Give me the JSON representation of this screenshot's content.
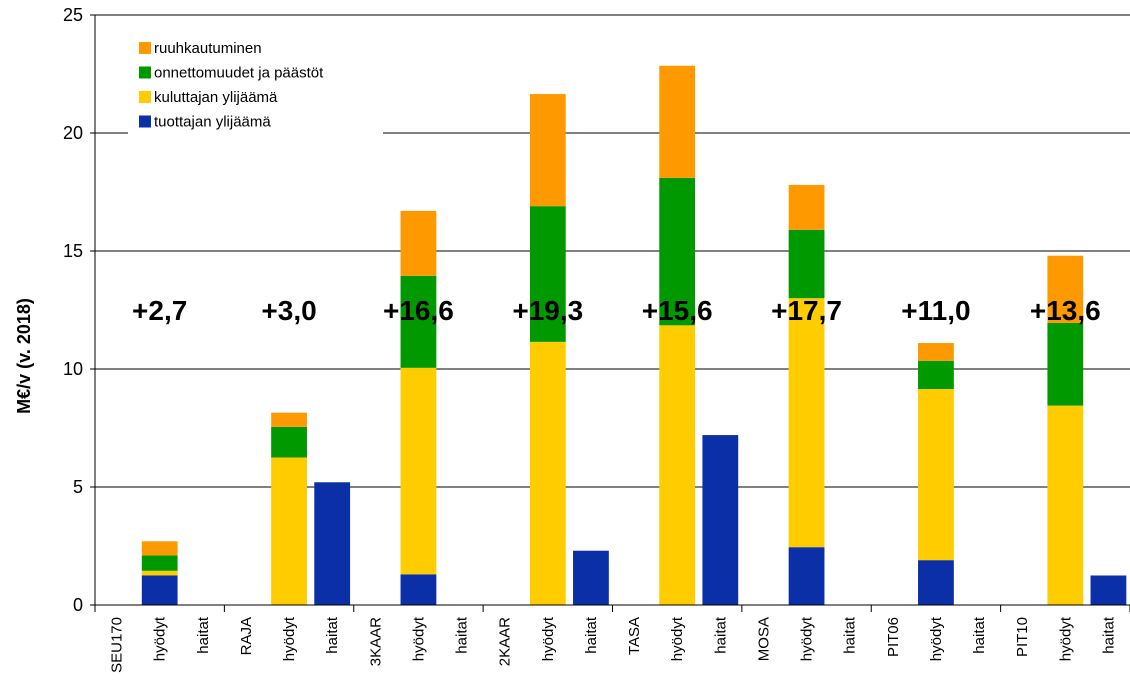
{
  "chart_data": {
    "type": "bar",
    "stacked": true,
    "ylabel": "M€/v (v. 2018)",
    "ylim": [
      0,
      25
    ],
    "yticks": [
      0,
      5,
      10,
      15,
      20,
      25
    ],
    "grid": true,
    "legend_position": "top-left",
    "categories": [
      "SEU170",
      "hyödyt",
      "haitat",
      "RAJA",
      "hyödyt",
      "haitat",
      "3KAAR",
      "hyödyt",
      "haitat",
      "2KAAR",
      "hyödyt",
      "haitat",
      "TASA",
      "hyödyt",
      "haitat",
      "MOSA",
      "hyödyt",
      "haitat",
      "PIT06",
      "hyödyt",
      "haitat",
      "PIT10",
      "hyödyt",
      "haitat"
    ],
    "series": [
      {
        "name": "tuottajan ylijäämä",
        "color": "#0a2fa6",
        "values": [
          0,
          1.25,
          0,
          0,
          0,
          5.2,
          0,
          1.3,
          0,
          0,
          0,
          2.3,
          0,
          0,
          7.2,
          0,
          2.45,
          0,
          0,
          1.9,
          0,
          0,
          0,
          1.25
        ]
      },
      {
        "name": "kuluttajan ylijäämä",
        "color": "#ffcc00",
        "values": [
          0,
          0.2,
          0,
          0,
          6.25,
          0,
          0,
          8.75,
          0,
          0,
          11.15,
          0,
          0,
          11.85,
          0,
          0,
          10.55,
          0,
          0,
          7.25,
          0,
          0,
          8.45,
          0
        ]
      },
      {
        "name": "onnettomuudet ja päästöt",
        "color": "#009900",
        "values": [
          0,
          0.65,
          0,
          0,
          1.3,
          0,
          0,
          3.9,
          0,
          0,
          5.75,
          0,
          0,
          6.25,
          0,
          0,
          2.9,
          0,
          0,
          1.2,
          0,
          0,
          3.5,
          0
        ]
      },
      {
        "name": "ruuhkautuminen",
        "color": "#ff9900",
        "values": [
          0,
          0.6,
          0,
          0,
          0.6,
          0,
          0,
          2.75,
          0,
          0,
          4.75,
          0,
          0,
          4.75,
          0,
          0,
          1.9,
          0,
          0,
          0.75,
          0,
          0,
          2.85,
          0
        ]
      }
    ],
    "annotations": [
      {
        "text": "+2,7",
        "group": 0
      },
      {
        "text": "+3,0",
        "group": 1
      },
      {
        "text": "+16,6",
        "group": 2
      },
      {
        "text": "+19,3",
        "group": 3
      },
      {
        "text": "+15,6",
        "group": 4
      },
      {
        "text": "+17,7",
        "group": 5
      },
      {
        "text": "+11,0",
        "group": 6
      },
      {
        "text": "+13,6",
        "group": 7
      }
    ],
    "legend_order": [
      "ruuhkautuminen",
      "onnettomuudet ja päästöt",
      "kuluttajan ylijäämä",
      "tuottajan ylijäämä"
    ]
  }
}
